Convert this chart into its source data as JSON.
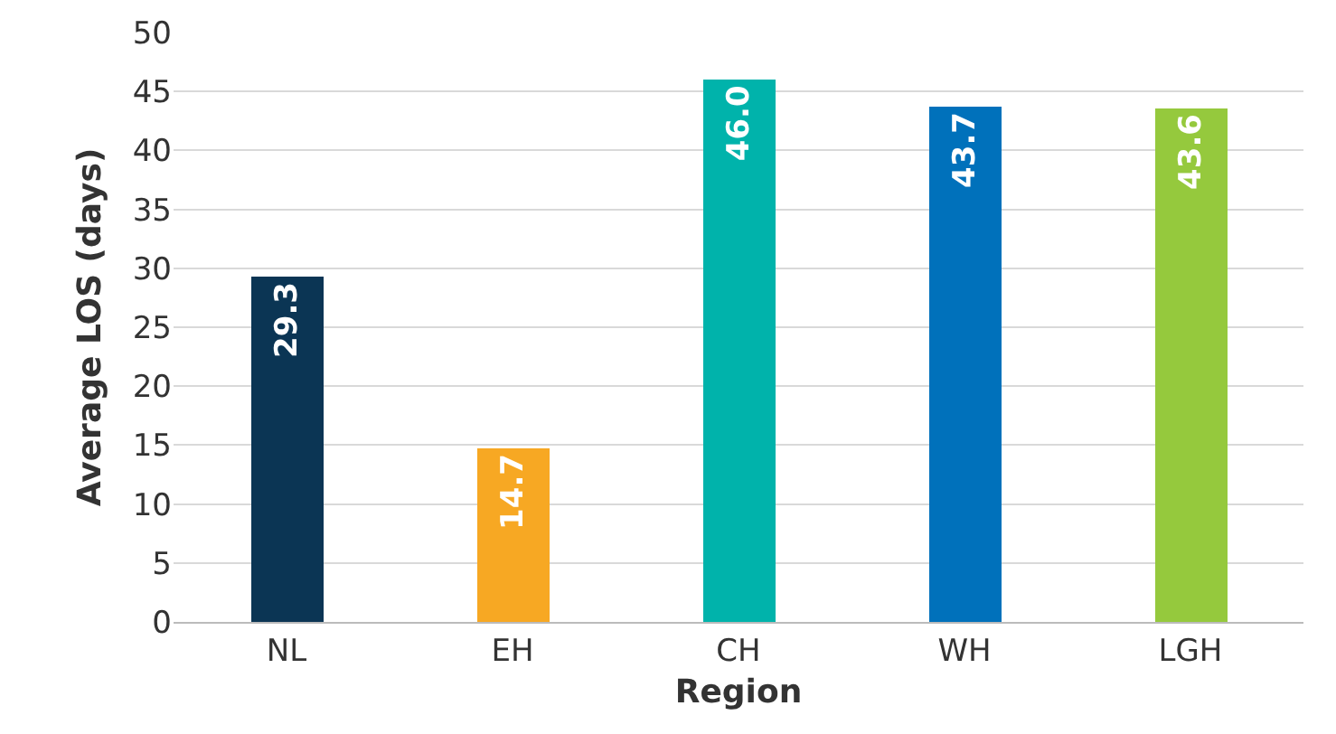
{
  "chart_data": {
    "type": "bar",
    "xlabel": "Region",
    "ylabel": "Average LOS (days)",
    "categories": [
      "NL",
      "EH",
      "CH",
      "WH",
      "LGH"
    ],
    "values": [
      29.3,
      14.7,
      46.0,
      43.7,
      43.6
    ],
    "colors": [
      "#0b3554",
      "#f7a823",
      "#00b3ab",
      "#0071bb",
      "#95c93d"
    ],
    "value_labels": [
      "29.3",
      "14.7",
      "46.0",
      "43.7",
      "43.6"
    ],
    "ylim": [
      0,
      50
    ],
    "yticks": [
      0,
      5,
      10,
      15,
      20,
      25,
      30,
      35,
      40,
      45,
      50
    ],
    "grid": "y",
    "legend": false
  }
}
